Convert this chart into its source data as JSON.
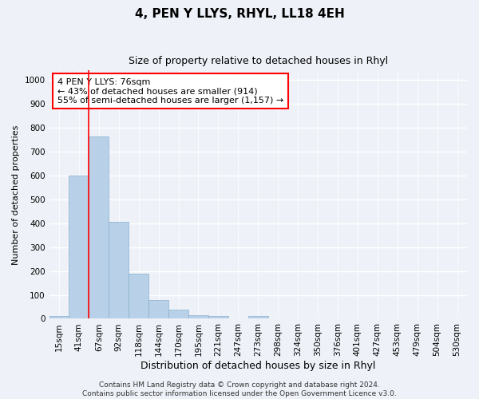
{
  "title": "4, PEN Y LLYS, RHYL, LL18 4EH",
  "subtitle": "Size of property relative to detached houses in Rhyl",
  "xlabel": "Distribution of detached houses by size in Rhyl",
  "ylabel": "Number of detached properties",
  "bar_labels": [
    "15sqm",
    "41sqm",
    "67sqm",
    "92sqm",
    "118sqm",
    "144sqm",
    "170sqm",
    "195sqm",
    "221sqm",
    "247sqm",
    "273sqm",
    "298sqm",
    "324sqm",
    "350sqm",
    "376sqm",
    "401sqm",
    "427sqm",
    "453sqm",
    "479sqm",
    "504sqm",
    "530sqm"
  ],
  "bar_values": [
    10,
    600,
    765,
    405,
    188,
    78,
    38,
    14,
    10,
    0,
    10,
    0,
    0,
    0,
    0,
    0,
    0,
    0,
    0,
    0,
    0
  ],
  "bar_color": "#b8d0e8",
  "bar_edge_color": "#8ab0d0",
  "vline_x": 1.5,
  "vline_color": "red",
  "annotation_line1": "4 PEN Y LLYS: 76sqm",
  "annotation_line2": "← 43% of detached houses are smaller (914)",
  "annotation_line3": "55% of semi-detached houses are larger (1,157) →",
  "annotation_box_color": "white",
  "annotation_box_edge_color": "red",
  "ylim": [
    0,
    1040
  ],
  "yticks": [
    0,
    100,
    200,
    300,
    400,
    500,
    600,
    700,
    800,
    900,
    1000
  ],
  "background_color": "#eef2f8",
  "grid_color": "white",
  "footer_text": "Contains HM Land Registry data © Crown copyright and database right 2024.\nContains public sector information licensed under the Open Government Licence v3.0.",
  "title_fontsize": 11,
  "subtitle_fontsize": 9,
  "ylabel_fontsize": 8,
  "xlabel_fontsize": 9,
  "tick_fontsize": 7.5,
  "annotation_fontsize": 8,
  "footer_fontsize": 6.5
}
